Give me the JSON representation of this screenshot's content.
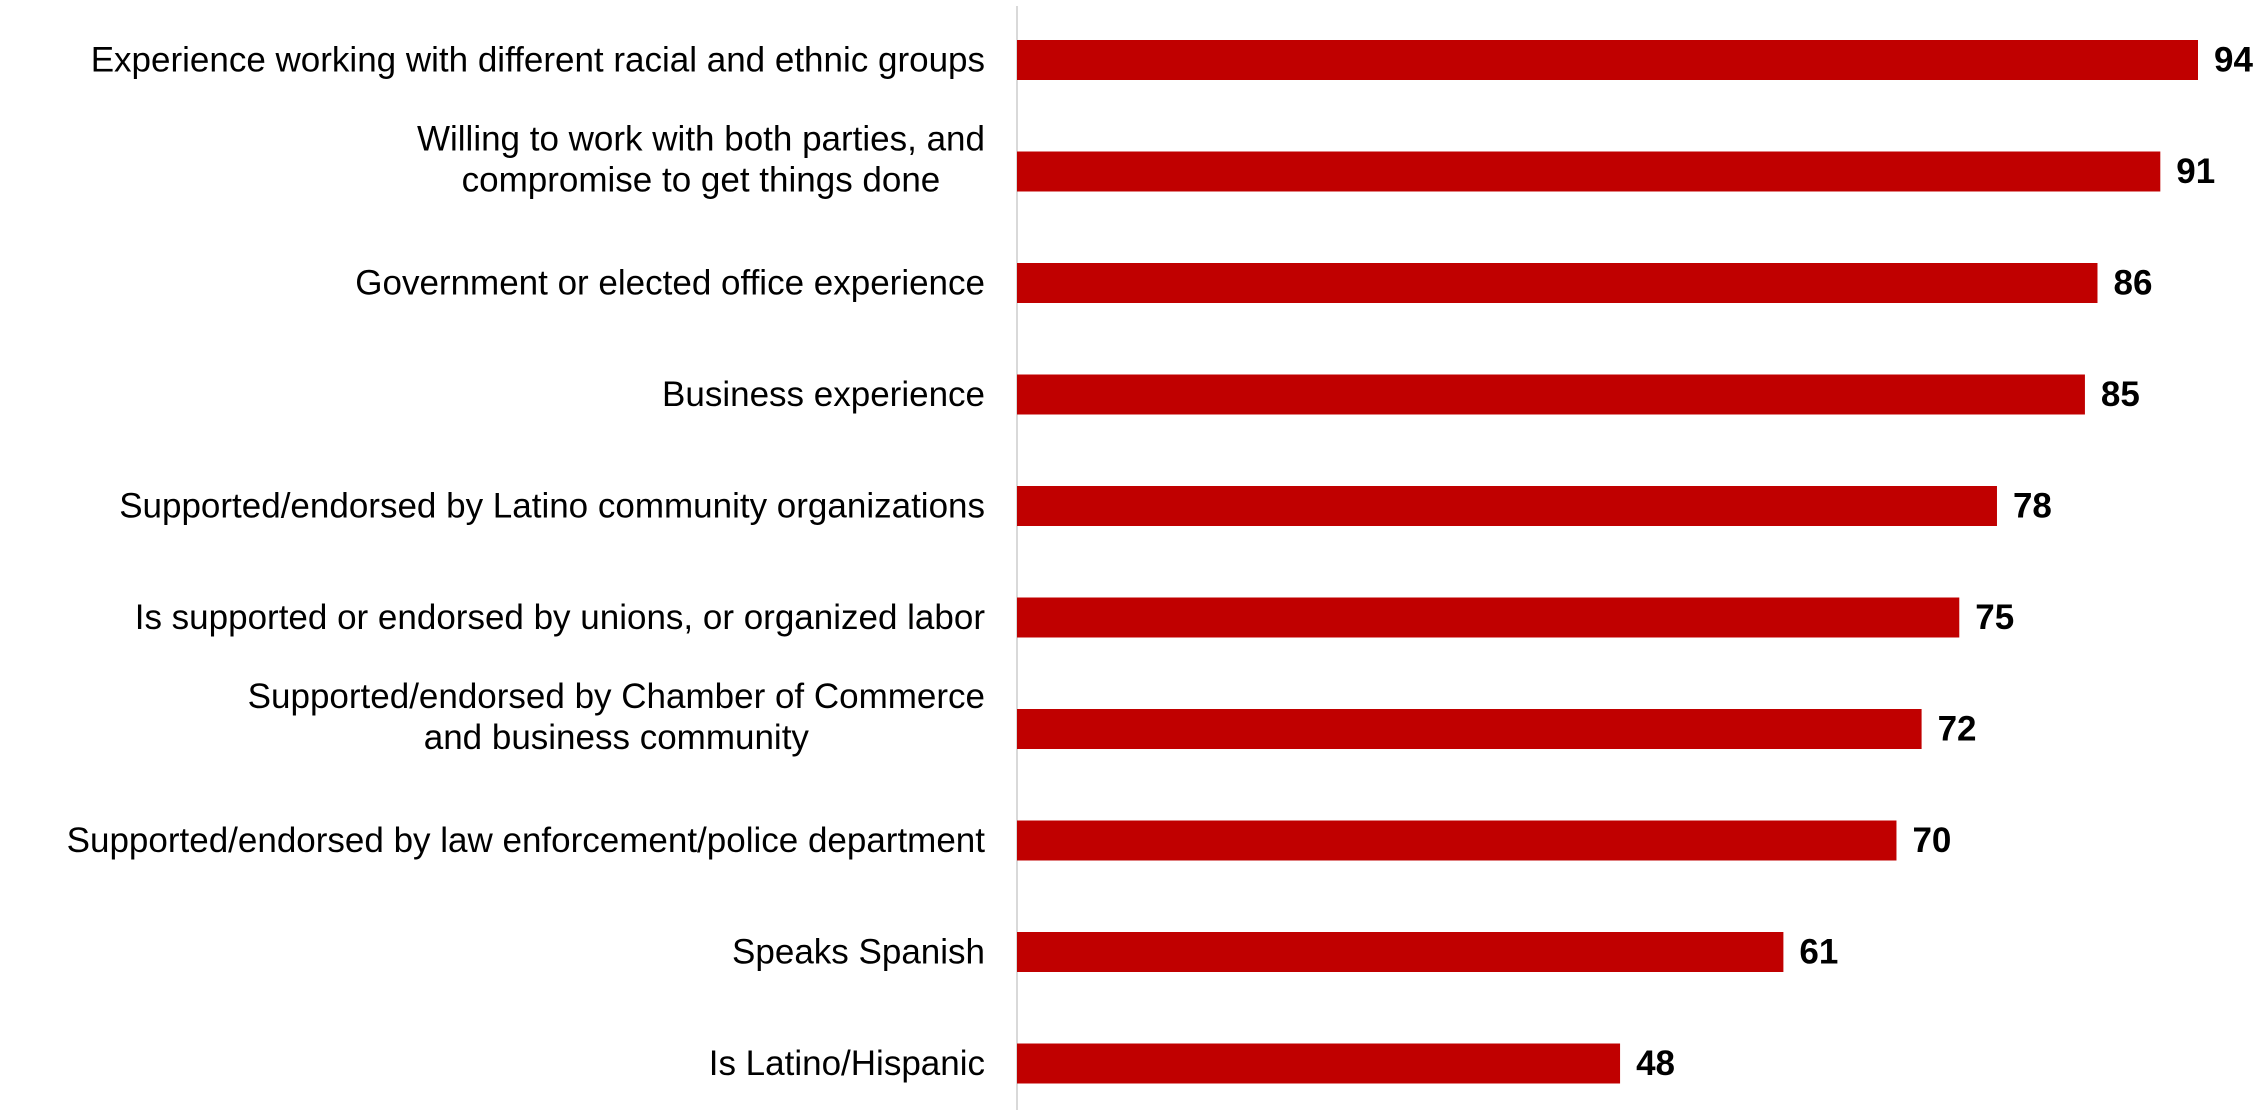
{
  "chart_data": {
    "type": "bar",
    "orientation": "horizontal",
    "categories": [
      [
        "Experience working with different racial and ethnic groups"
      ],
      [
        "Willing to work with both parties, and",
        "compromise to get things done"
      ],
      [
        "Government or elected office experience"
      ],
      [
        "Business experience"
      ],
      [
        "Supported/endorsed by Latino community organizations"
      ],
      [
        "Is supported or endorsed by unions, or organized labor"
      ],
      [
        "Supported/endorsed by Chamber of Commerce",
        "and business community"
      ],
      [
        "Supported/endorsed by law enforcement/police department"
      ],
      [
        "Speaks Spanish"
      ],
      [
        "Is Latino/Hispanic"
      ]
    ],
    "values": [
      94,
      91,
      86,
      85,
      78,
      75,
      72,
      70,
      61,
      48
    ],
    "title": "",
    "xlabel": "",
    "ylabel": "",
    "xlim": [
      0,
      94
    ],
    "grid": false,
    "legend": "none",
    "data_labels": true,
    "colors": {
      "bar": "#c00000",
      "axis": "#d9d9d9",
      "text": "#000000"
    }
  }
}
